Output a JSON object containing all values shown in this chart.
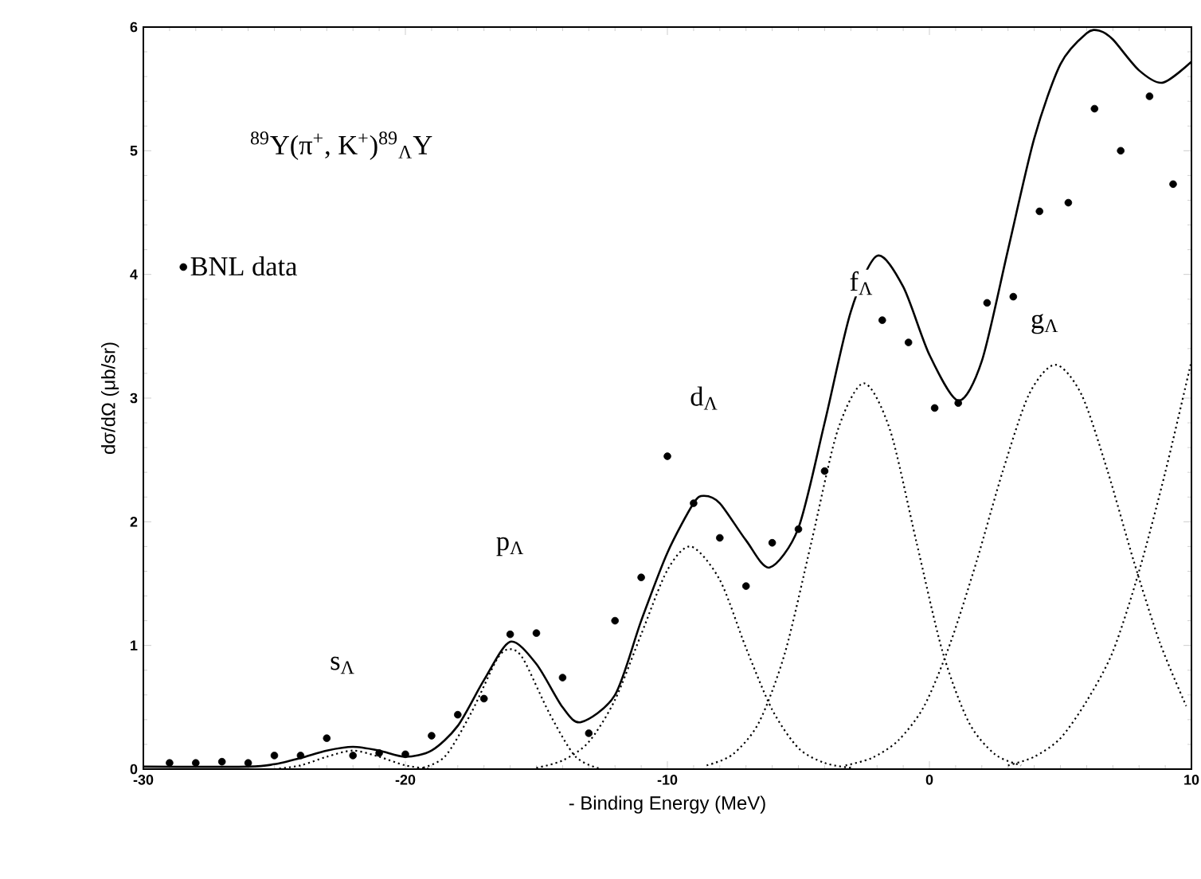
{
  "chart_data": {
    "type": "line",
    "xlabel": "- Binding Energy (MeV)",
    "ylabel": "dσ/dΩ (μb/sr)",
    "xlim": [
      -30,
      10
    ],
    "ylim": [
      0,
      6
    ],
    "xticks": [
      -30,
      -20,
      -10,
      0,
      10
    ],
    "yticks": [
      0,
      1,
      2,
      3,
      4,
      5,
      6
    ],
    "legend": "top left",
    "grid": false,
    "annotations": [
      "$^{89}$Y(π$^{+}$, K$^{+}$)$^{89}$$_{Λ}$Y",
      "s$_{Λ}$",
      "p$_{Λ}$",
      "d$_{Λ}$",
      "f$_{Λ}$",
      "g$_{Λ}$"
    ],
    "series": [
      {
        "name": "BNL data",
        "type": "scatter",
        "marker": "circle",
        "color": "#000000",
        "x": [
          -29,
          -28,
          -27,
          -26,
          -25,
          -24,
          -23,
          -22,
          -21,
          -20,
          -19,
          -18,
          -17,
          -16,
          -15,
          -14,
          -13,
          -12,
          -11,
          -10,
          -9,
          -8,
          -7,
          -6,
          -5,
          -4,
          -1.8,
          -0.8,
          0.2,
          1.1,
          2.2,
          3.2,
          4.2,
          5.3,
          6.3,
          7.3,
          8.4,
          9.3
        ],
        "values": [
          0.05,
          0.05,
          0.06,
          0.05,
          0.11,
          0.11,
          0.25,
          0.11,
          0.13,
          0.12,
          0.27,
          0.44,
          0.57,
          1.09,
          1.1,
          0.74,
          0.29,
          1.2,
          1.55,
          2.53,
          2.15,
          1.87,
          1.48,
          1.83,
          1.94,
          2.41,
          3.63,
          3.45,
          2.92,
          2.96,
          3.77,
          3.82,
          4.51,
          4.58,
          5.34,
          5.0,
          5.44,
          4.73
        ]
      },
      {
        "line_style": "solid",
        "color": "#000000",
        "x": [
          -30,
          -26,
          -25,
          -24,
          -23,
          -22,
          -21,
          -20,
          -19,
          -18,
          -17,
          -16,
          -15,
          -14,
          -13.3,
          -12,
          -11,
          -10,
          -9,
          -8.6,
          -8,
          -7,
          -6.1,
          -5,
          -4,
          -3,
          -2,
          -1,
          0,
          1.1,
          2,
          3,
          4,
          5,
          6,
          6.5,
          7,
          8,
          8.9,
          10
        ],
        "values": [
          0.02,
          0.02,
          0.04,
          0.09,
          0.15,
          0.18,
          0.15,
          0.1,
          0.15,
          0.35,
          0.72,
          1.03,
          0.85,
          0.5,
          0.38,
          0.6,
          1.2,
          1.75,
          2.15,
          2.21,
          2.15,
          1.85,
          1.63,
          1.95,
          2.8,
          3.7,
          4.15,
          3.9,
          3.35,
          2.98,
          3.3,
          4.2,
          5.1,
          5.7,
          5.95,
          5.97,
          5.9,
          5.65,
          5.55,
          5.72
        ]
      },
      {
        "type": "line",
        "line_style": "dotted",
        "color": "#000000",
        "x": [
          -25,
          -24,
          -23,
          -22,
          -21,
          -20,
          -19
        ],
        "values": [
          0,
          0.03,
          0.1,
          0.15,
          0.1,
          0.03,
          0
        ]
      },
      {
        "type": "line",
        "line_style": "dotted",
        "color": "#000000",
        "x": [
          -19.5,
          -18.5,
          -17.5,
          -16.5,
          -16,
          -15.5,
          -14.5,
          -13.5,
          -12.5
        ],
        "values": [
          0,
          0.1,
          0.45,
          0.89,
          0.97,
          0.89,
          0.45,
          0.1,
          0
        ]
      },
      {
        "type": "line",
        "line_style": "dotted",
        "color": "#000000",
        "x": [
          -15,
          -14,
          -13,
          -12,
          -11,
          -10,
          -9.1,
          -8,
          -7,
          -6,
          -5,
          -4,
          -3
        ],
        "values": [
          0.01,
          0.07,
          0.22,
          0.56,
          1.09,
          1.61,
          1.8,
          1.53,
          0.98,
          0.48,
          0.17,
          0.05,
          0.01
        ]
      },
      {
        "type": "line",
        "line_style": "dotted",
        "color": "#000000",
        "x": [
          -8.5,
          -7.5,
          -6.5,
          -5.5,
          -4.5,
          -3.5,
          -2.5,
          -1.5,
          -0.5,
          0.5,
          1.5,
          2.5,
          3.5
        ],
        "values": [
          0.03,
          0.12,
          0.38,
          0.95,
          1.84,
          2.74,
          3.12,
          2.74,
          1.84,
          0.95,
          0.38,
          0.12,
          0.03
        ]
      },
      {
        "type": "line",
        "line_style": "dotted",
        "color": "#000000",
        "x": [
          -3.2,
          -2.2,
          -1.2,
          -0.2,
          0.8,
          1.8,
          2.8,
          3.8,
          4.8,
          5.8,
          6.8,
          7.8,
          8.8,
          9.8
        ],
        "values": [
          0.03,
          0.09,
          0.23,
          0.51,
          1.02,
          1.68,
          2.41,
          3.03,
          3.27,
          3.03,
          2.41,
          1.68,
          1.02,
          0.51
        ]
      },
      {
        "type": "line",
        "line_style": "dotted",
        "color": "#000000",
        "x": [
          3,
          4,
          5,
          6,
          7,
          8,
          9,
          10
        ],
        "values": [
          0.03,
          0.1,
          0.25,
          0.55,
          0.95,
          1.6,
          2.4,
          3.3
        ]
      }
    ]
  }
}
